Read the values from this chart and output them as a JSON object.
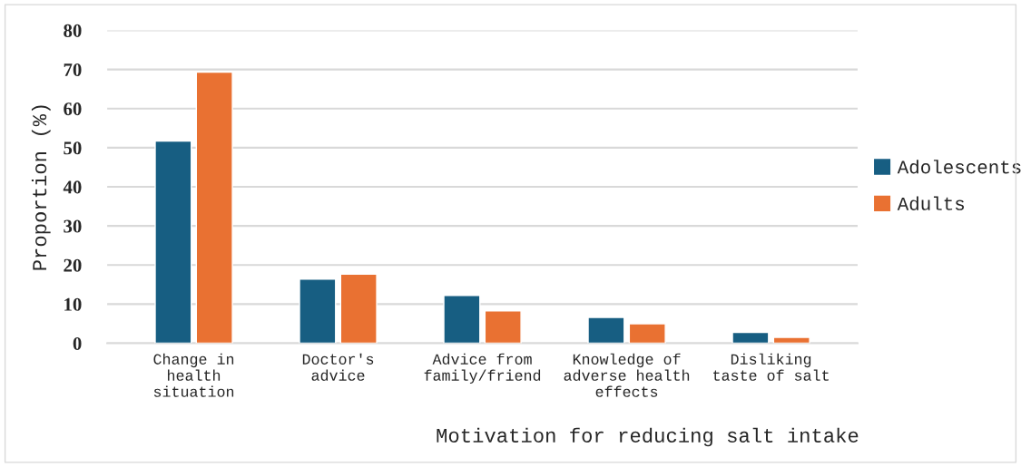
{
  "chart_data": {
    "type": "bar",
    "categories": [
      "Change in\nhealth\nsituation",
      "Doctor's\nadvice",
      "Advice from\nfamily/friend",
      "Knowledge of\nadverse health\neffects",
      "Disliking\ntaste of salt"
    ],
    "series": [
      {
        "name": "Adolescents",
        "color": "#175e82",
        "values": [
          51.7,
          16.4,
          12.2,
          6.6,
          2.8
        ]
      },
      {
        "name": "Adults",
        "color": "#e97132",
        "values": [
          69.3,
          17.7,
          8.3,
          5.0,
          1.5
        ]
      }
    ],
    "xlabel": "Motivation for reducing salt intake",
    "ylabel": "Proportion (%)",
    "ylim": [
      0,
      80
    ],
    "yticks": [
      0,
      10,
      20,
      30,
      40,
      50,
      60,
      70,
      80
    ],
    "grid": "y",
    "legend": "right"
  }
}
